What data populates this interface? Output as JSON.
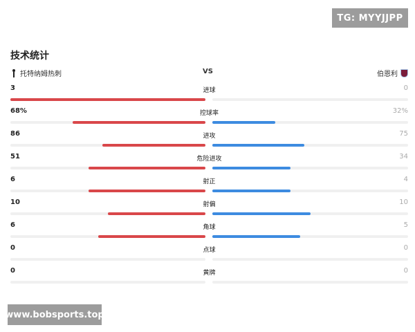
{
  "watermarks": {
    "top": "TG: MYYJJPP",
    "bottom": "www.bobsports.top"
  },
  "title": "技术统计",
  "teams": {
    "home": "托特纳姆热刺",
    "vs": "VS",
    "away": "伯恩利"
  },
  "colors": {
    "home_bar": "#d9474a",
    "away_bar": "#3d8be0",
    "track": "#f0f0f0"
  },
  "icons": {
    "home": "spurs-logo-icon",
    "away": "burnley-logo-icon"
  },
  "stats": [
    {
      "label": "进球",
      "home": "3",
      "away": "0",
      "home_pct": 1.0,
      "away_pct": 0.0
    },
    {
      "label": "控球率",
      "home": "68%",
      "away": "32%",
      "home_pct": 0.68,
      "away_pct": 0.32
    },
    {
      "label": "进攻",
      "home": "86",
      "away": "75",
      "home_pct": 0.53,
      "away_pct": 0.47
    },
    {
      "label": "危险进攻",
      "home": "51",
      "away": "34",
      "home_pct": 0.6,
      "away_pct": 0.4
    },
    {
      "label": "射正",
      "home": "6",
      "away": "4",
      "home_pct": 0.6,
      "away_pct": 0.4
    },
    {
      "label": "射偏",
      "home": "10",
      "away": "10",
      "home_pct": 0.5,
      "away_pct": 0.5
    },
    {
      "label": "角球",
      "home": "6",
      "away": "5",
      "home_pct": 0.55,
      "away_pct": 0.45
    },
    {
      "label": "点球",
      "home": "0",
      "away": "0",
      "home_pct": 0.0,
      "away_pct": 0.0
    },
    {
      "label": "黄牌",
      "home": "0",
      "away": "0",
      "home_pct": 0.0,
      "away_pct": 0.0
    }
  ]
}
